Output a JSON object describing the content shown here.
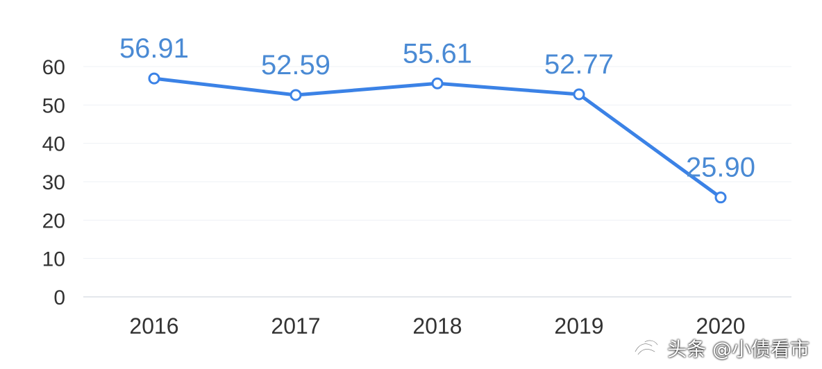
{
  "chart_data": {
    "type": "line",
    "title": "",
    "xlabel": "",
    "ylabel": "",
    "x": [
      "2016",
      "2017",
      "2018",
      "2019",
      "2020"
    ],
    "series": [
      {
        "values": [
          56.91,
          52.59,
          55.61,
          52.77,
          25.9
        ],
        "labels": [
          "56.91",
          "52.59",
          "55.61",
          "52.77",
          "25.90"
        ],
        "color": "#3b82e6"
      }
    ],
    "ylim": [
      0,
      60
    ],
    "yticks": [
      "0",
      "10",
      "20",
      "30",
      "40",
      "50",
      "60"
    ],
    "grid": true,
    "legend": "none"
  },
  "colors": {
    "line": "#3b82e6",
    "label": "#4a8ad4",
    "axis_text": "#333333",
    "grid": "#eef1f5",
    "axis_line": "#dcdfe6"
  },
  "watermark": {
    "text": "头条 @小债看市",
    "icon": "toutiao-logo-icon"
  }
}
